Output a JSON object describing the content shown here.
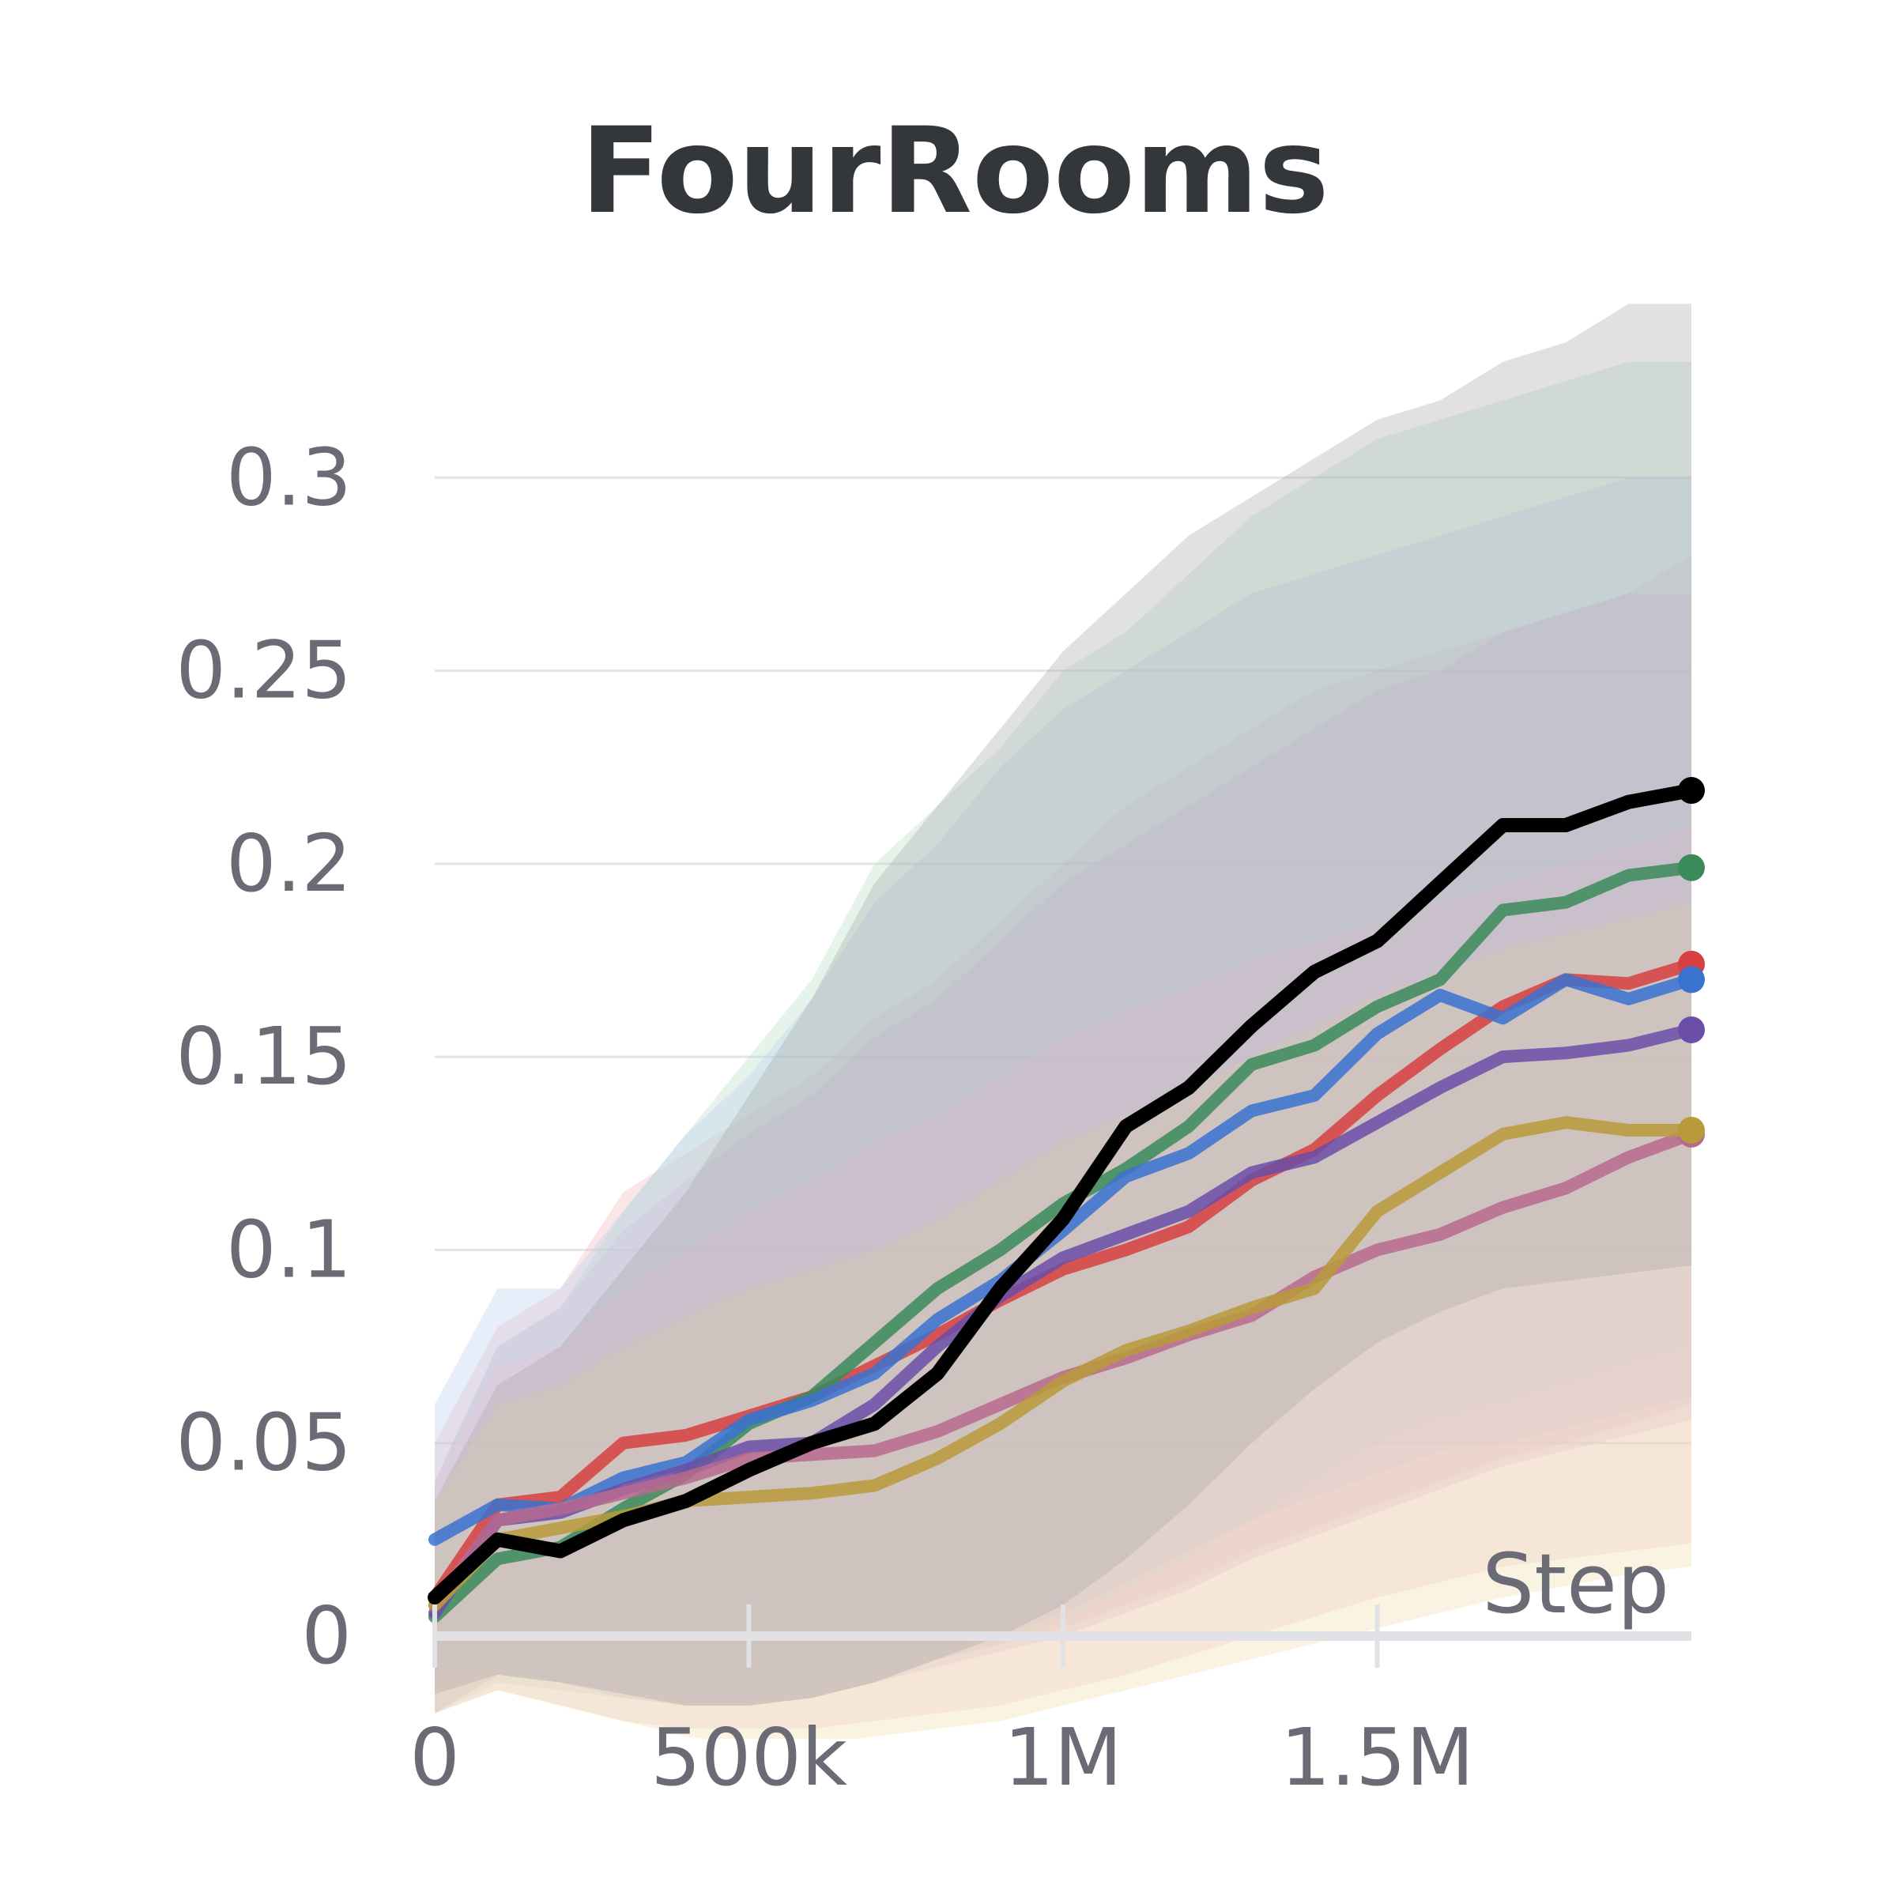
{
  "chart_data": {
    "type": "line",
    "title": "FourRooms",
    "xlabel": "Step",
    "ylabel": "",
    "xlim": [
      0,
      2000000
    ],
    "ylim": [
      0,
      0.35
    ],
    "x_ticks": [
      {
        "value": 0,
        "label": "0"
      },
      {
        "value": 500000,
        "label": "500k"
      },
      {
        "value": 1000000,
        "label": "1M"
      },
      {
        "value": 1500000,
        "label": "1.5M"
      }
    ],
    "y_ticks": [
      {
        "value": 0,
        "label": "0"
      },
      {
        "value": 0.05,
        "label": "0.05"
      },
      {
        "value": 0.1,
        "label": "0.1"
      },
      {
        "value": 0.15,
        "label": "0.15"
      },
      {
        "value": 0.2,
        "label": "0.2"
      },
      {
        "value": 0.25,
        "label": "0.25"
      },
      {
        "value": 0.3,
        "label": "0.3"
      }
    ],
    "grid": true,
    "legend": "none",
    "x": [
      0,
      100000,
      200000,
      300000,
      400000,
      500000,
      600000,
      700000,
      800000,
      900000,
      1000000,
      1100000,
      1200000,
      1300000,
      1400000,
      1500000,
      1600000,
      1700000,
      1800000,
      1900000,
      2000000
    ],
    "series": [
      {
        "color": "#d64040",
        "fill": "#f2b8b8",
        "values": [
          0.01,
          0.034,
          0.036,
          0.05,
          0.052,
          0.057,
          0.062,
          0.07,
          0.078,
          0.087,
          0.095,
          0.1,
          0.106,
          0.118,
          0.126,
          0.14,
          0.152,
          0.163,
          0.17,
          0.169,
          0.174
        ],
        "lower": [
          -0.02,
          -0.01,
          -0.012,
          -0.015,
          -0.018,
          -0.018,
          -0.016,
          -0.012,
          -0.006,
          -0.002,
          0.002,
          0.008,
          0.014,
          0.022,
          0.028,
          0.034,
          0.04,
          0.046,
          0.05,
          0.055,
          0.06
        ],
        "upper": [
          0.05,
          0.08,
          0.09,
          0.115,
          0.125,
          0.135,
          0.145,
          0.16,
          0.17,
          0.185,
          0.2,
          0.215,
          0.225,
          0.235,
          0.245,
          0.25,
          0.255,
          0.26,
          0.265,
          0.27,
          0.28
        ]
      },
      {
        "color": "#3a8a5a",
        "fill": "#b8dcc6",
        "values": [
          0.005,
          0.02,
          0.023,
          0.033,
          0.042,
          0.055,
          0.062,
          0.076,
          0.09,
          0.1,
          0.112,
          0.121,
          0.132,
          0.148,
          0.153,
          0.163,
          0.17,
          0.188,
          0.19,
          0.197,
          0.199
        ],
        "lower": [
          -0.02,
          -0.012,
          -0.014,
          -0.016,
          -0.018,
          -0.018,
          -0.016,
          -0.012,
          -0.006,
          -0.002,
          0.004,
          0.012,
          0.02,
          0.03,
          0.04,
          0.05,
          0.056,
          0.06,
          0.065,
          0.07,
          0.075
        ],
        "upper": [
          0.04,
          0.075,
          0.085,
          0.11,
          0.13,
          0.15,
          0.17,
          0.2,
          0.215,
          0.23,
          0.25,
          0.26,
          0.275,
          0.29,
          0.3,
          0.31,
          0.315,
          0.32,
          0.325,
          0.33,
          0.33
        ]
      },
      {
        "color": "#3a72d0",
        "fill": "#b6cdef",
        "values": [
          0.025,
          0.034,
          0.033,
          0.041,
          0.045,
          0.056,
          0.061,
          0.068,
          0.082,
          0.092,
          0.105,
          0.119,
          0.125,
          0.136,
          0.14,
          0.156,
          0.166,
          0.16,
          0.17,
          0.165,
          0.17
        ],
        "lower": [
          -0.01,
          -0.008,
          -0.012,
          -0.014,
          -0.016,
          -0.016,
          -0.014,
          -0.01,
          -0.004,
          0.0,
          0.006,
          0.014,
          0.022,
          0.03,
          0.036,
          0.042,
          0.048,
          0.05,
          0.054,
          0.058,
          0.062
        ],
        "upper": [
          0.06,
          0.09,
          0.09,
          0.11,
          0.13,
          0.145,
          0.165,
          0.19,
          0.205,
          0.225,
          0.24,
          0.25,
          0.26,
          0.27,
          0.275,
          0.28,
          0.285,
          0.29,
          0.295,
          0.3,
          0.3
        ]
      },
      {
        "color": "#6b4ea8",
        "fill": "#cfc0e6",
        "values": [
          0.006,
          0.03,
          0.032,
          0.038,
          0.043,
          0.049,
          0.05,
          0.06,
          0.075,
          0.088,
          0.098,
          0.104,
          0.11,
          0.12,
          0.124,
          0.133,
          0.142,
          0.15,
          0.151,
          0.153,
          0.157
        ],
        "lower": [
          -0.02,
          -0.01,
          -0.012,
          -0.016,
          -0.018,
          -0.018,
          -0.016,
          -0.012,
          -0.008,
          -0.004,
          0.0,
          0.006,
          0.012,
          0.02,
          0.026,
          0.032,
          0.038,
          0.044,
          0.048,
          0.052,
          0.056
        ],
        "upper": [
          0.04,
          0.075,
          0.085,
          0.105,
          0.118,
          0.13,
          0.14,
          0.155,
          0.165,
          0.18,
          0.195,
          0.205,
          0.215,
          0.225,
          0.235,
          0.245,
          0.25,
          0.26,
          0.265,
          0.27,
          0.27
        ]
      },
      {
        "color": "#b86a8e",
        "fill": "#ebc6d6",
        "values": [
          0.008,
          0.03,
          0.033,
          0.037,
          0.041,
          0.046,
          0.047,
          0.048,
          0.053,
          0.06,
          0.067,
          0.072,
          0.078,
          0.083,
          0.093,
          0.1,
          0.104,
          0.111,
          0.116,
          0.124,
          0.13
        ],
        "lower": [
          -0.02,
          -0.014,
          -0.018,
          -0.022,
          -0.024,
          -0.024,
          -0.024,
          -0.022,
          -0.02,
          -0.018,
          -0.014,
          -0.01,
          -0.005,
          0.0,
          0.005,
          0.01,
          0.014,
          0.018,
          0.02,
          0.022,
          0.024
        ],
        "upper": [
          0.04,
          0.07,
          0.075,
          0.09,
          0.1,
          0.11,
          0.118,
          0.128,
          0.135,
          0.145,
          0.155,
          0.162,
          0.168,
          0.175,
          0.18,
          0.185,
          0.19,
          0.195,
          0.2,
          0.205,
          0.21
        ]
      },
      {
        "color": "#b89a3a",
        "fill": "#f0dca8",
        "values": [
          0.008,
          0.025,
          0.028,
          0.031,
          0.035,
          0.036,
          0.037,
          0.039,
          0.046,
          0.055,
          0.066,
          0.074,
          0.079,
          0.085,
          0.09,
          0.11,
          0.12,
          0.13,
          0.133,
          0.131,
          0.131
        ],
        "lower": [
          -0.02,
          -0.014,
          -0.018,
          -0.022,
          -0.026,
          -0.028,
          -0.028,
          -0.026,
          -0.024,
          -0.022,
          -0.018,
          -0.014,
          -0.01,
          -0.006,
          -0.002,
          0.002,
          0.006,
          0.01,
          0.013,
          0.016,
          0.018
        ],
        "upper": [
          0.035,
          0.06,
          0.065,
          0.075,
          0.083,
          0.09,
          0.095,
          0.1,
          0.108,
          0.118,
          0.128,
          0.135,
          0.142,
          0.15,
          0.158,
          0.166,
          0.172,
          0.178,
          0.182,
          0.186,
          0.19
        ]
      },
      {
        "color": "#000000",
        "fill": "#a8a8a8",
        "values": [
          0.01,
          0.025,
          0.022,
          0.03,
          0.035,
          0.043,
          0.05,
          0.055,
          0.068,
          0.09,
          0.108,
          0.132,
          0.142,
          0.158,
          0.172,
          0.18,
          0.195,
          0.21,
          0.21,
          0.216,
          0.219
        ],
        "lower": [
          -0.015,
          -0.01,
          -0.012,
          -0.015,
          -0.018,
          -0.018,
          -0.016,
          -0.012,
          -0.006,
          0.0,
          0.008,
          0.02,
          0.034,
          0.05,
          0.064,
          0.076,
          0.084,
          0.09,
          0.092,
          0.094,
          0.096
        ],
        "upper": [
          0.035,
          0.065,
          0.075,
          0.095,
          0.115,
          0.14,
          0.165,
          0.195,
          0.215,
          0.235,
          0.255,
          0.27,
          0.285,
          0.295,
          0.305,
          0.315,
          0.32,
          0.33,
          0.335,
          0.345,
          0.345
        ]
      }
    ]
  }
}
